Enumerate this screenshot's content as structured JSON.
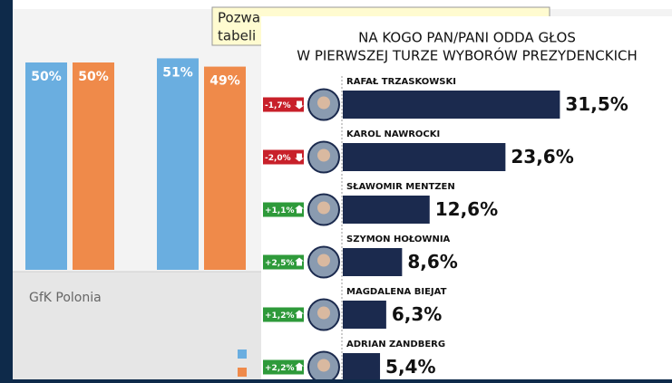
{
  "chart_data": [
    {
      "type": "bar",
      "source": "GfK Polonia",
      "annotation": [
        "Pozwa",
        "tabeli"
      ],
      "series": [
        {
          "color": "#6aaee0",
          "values": [
            50,
            51
          ],
          "value_labels": [
            "50%",
            "51%"
          ]
        },
        {
          "color": "#ef8a4a",
          "values": [
            50,
            49
          ],
          "value_labels": [
            "50%",
            "49%"
          ]
        }
      ]
    },
    {
      "type": "hbar",
      "title": [
        "NA KOGO PAN/PANI ODDA GŁOS",
        "W PIERWSZEJ TURZE WYBORÓW PREZYDENCKICH"
      ],
      "categories": [
        "RAFAŁ TRZASKOWSKI",
        "KAROL NAWROCKI",
        "SŁAWOMIR MENTZEN",
        "SZYMON HOŁOWNIA",
        "MAGDALENA BIEJAT",
        "ADRIAN ZANDBERG"
      ],
      "values": [
        31.5,
        23.6,
        12.6,
        8.6,
        6.3,
        5.4
      ],
      "value_labels": [
        "31,5%",
        "23,6%",
        "12,6%",
        "8,6%",
        "6,3%",
        "5,4%"
      ],
      "color": "#1b2a4e",
      "changes": {
        "values": [
          -1.7,
          -2.0,
          1.1,
          2.5,
          1.2,
          2.2
        ],
        "labels": [
          "-1,7%",
          "-2,0%",
          "+1,1%",
          "+2,5%",
          "+1,2%",
          "+2,2%"
        ]
      }
    }
  ]
}
